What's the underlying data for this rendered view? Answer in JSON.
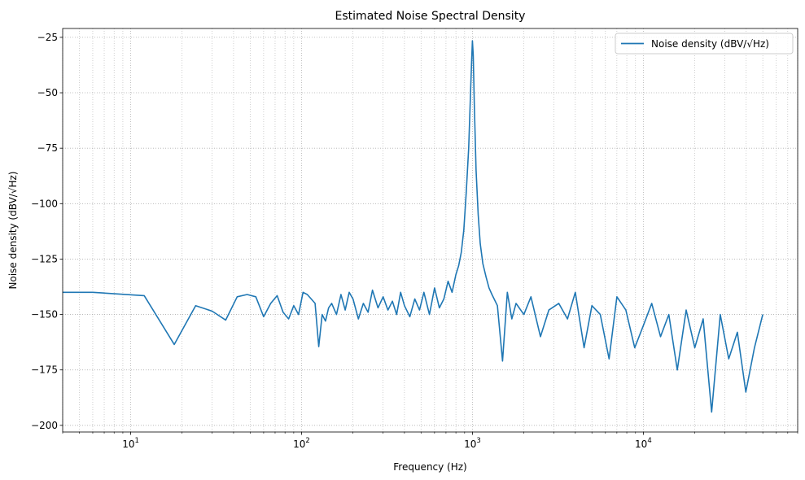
{
  "chart_data": {
    "type": "line",
    "title": "Estimated Noise Spectral Density",
    "xlabel": "Frequency (Hz)",
    "ylabel": "Noise density (dBV/√Hz)",
    "xscale": "log",
    "xlim": [
      4,
      80000
    ],
    "ylim": [
      -203,
      -21
    ],
    "xticks": [
      {
        "value": 10,
        "base": "10",
        "exp": "1"
      },
      {
        "value": 100,
        "base": "10",
        "exp": "2"
      },
      {
        "value": 1000,
        "base": "10",
        "exp": "3"
      },
      {
        "value": 10000,
        "base": "10",
        "exp": "4"
      }
    ],
    "yticks": [
      {
        "value": -25,
        "label": "−25"
      },
      {
        "value": -50,
        "label": "−50"
      },
      {
        "value": -75,
        "label": "−75"
      },
      {
        "value": -100,
        "label": "−100"
      },
      {
        "value": -125,
        "label": "−125"
      },
      {
        "value": -150,
        "label": "−150"
      },
      {
        "value": -175,
        "label": "−175"
      },
      {
        "value": -200,
        "label": "−200"
      }
    ],
    "grid": true,
    "grid_style": "dotted, major and minor",
    "legend_position": "top-right",
    "series": [
      {
        "name": "Noise density (dBV/√Hz)",
        "color": "#1f77b4",
        "x": [
          4,
          6,
          12,
          18,
          24,
          30,
          36,
          42,
          48,
          54,
          60,
          66,
          72,
          78,
          84,
          90,
          96,
          102,
          108,
          114,
          120,
          126,
          132,
          138,
          144,
          150,
          160,
          170,
          180,
          190,
          200,
          215,
          230,
          245,
          260,
          280,
          300,
          320,
          340,
          360,
          380,
          400,
          430,
          460,
          490,
          520,
          560,
          600,
          640,
          680,
          720,
          760,
          800,
          830,
          860,
          890,
          920,
          950,
          975,
          990,
          1000,
          1010,
          1025,
          1050,
          1080,
          1110,
          1150,
          1200,
          1250,
          1300,
          1400,
          1500,
          1600,
          1700,
          1800,
          2000,
          2200,
          2500,
          2800,
          3200,
          3600,
          4000,
          4500,
          5000,
          5600,
          6300,
          7000,
          7900,
          8900,
          10000,
          11200,
          12600,
          14100,
          15800,
          17800,
          20000,
          22400,
          25100,
          28200,
          31600,
          35500,
          39800,
          44700,
          50000
        ],
        "y": [
          -140,
          -140,
          -141.5,
          -163.5,
          -146,
          -148.5,
          -152.5,
          -142,
          -141,
          -142,
          -151,
          -145,
          -141.5,
          -149,
          -152,
          -146,
          -150,
          -140,
          -141,
          -143,
          -145,
          -164.5,
          -150,
          -153,
          -147,
          -145,
          -150,
          -141,
          -148,
          -140,
          -143,
          -152,
          -145,
          -149,
          -139,
          -147,
          -142,
          -148,
          -144,
          -150,
          -140,
          -146,
          -151,
          -143,
          -148,
          -140,
          -150,
          -138,
          -147,
          -143,
          -135,
          -140,
          -132,
          -128,
          -122,
          -112,
          -95,
          -75,
          -50,
          -35,
          -26.5,
          -33,
          -55,
          -85,
          -105,
          -118,
          -127,
          -133,
          -138,
          -141,
          -146,
          -171,
          -140,
          -152,
          -145,
          -150,
          -142,
          -160,
          -148,
          -145,
          -152,
          -140,
          -165,
          -146,
          -150,
          -170,
          -142,
          -148,
          -165,
          -155,
          -145,
          -160,
          -150,
          -175,
          -148,
          -165,
          -152,
          -194,
          -150,
          -170,
          -158,
          -185,
          -165,
          -150
        ]
      }
    ]
  }
}
